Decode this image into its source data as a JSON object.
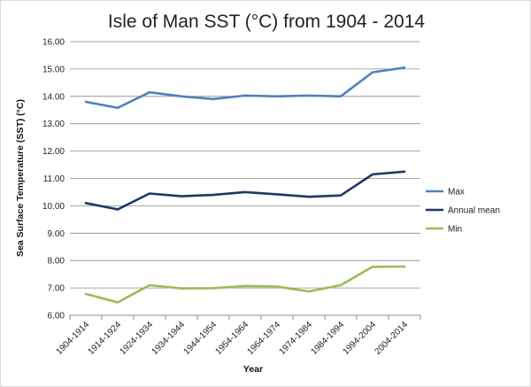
{
  "chart_data": {
    "type": "line",
    "title": "Isle of Man SST (°C) from 1904 - 2014",
    "xlabel": "Year",
    "ylabel": "Sea Surface Temperature (SST) (°C)",
    "ylim": [
      6,
      16
    ],
    "y_ticks": [
      "6.00",
      "7.00",
      "8.00",
      "9.00",
      "10.00",
      "11.00",
      "12.00",
      "13.00",
      "14.00",
      "15.00",
      "16.00"
    ],
    "grid": true,
    "legend_position": "right",
    "categories": [
      "1904-1914",
      "1914-1924",
      "1924-1934",
      "1934-1944",
      "1944-1954",
      "1954-1964",
      "1964-1974",
      "1974-1984",
      "1984-1994",
      "1994-2004",
      "2004-2014"
    ],
    "series": [
      {
        "name": "Max",
        "color": "#4f81bd",
        "values": [
          13.8,
          13.58,
          14.15,
          14.0,
          13.9,
          14.03,
          14.0,
          14.03,
          14.0,
          14.88,
          15.05
        ]
      },
      {
        "name": "Annual mean",
        "color": "#1f3864",
        "values": [
          10.1,
          9.87,
          10.45,
          10.35,
          10.4,
          10.5,
          10.42,
          10.33,
          10.38,
          11.15,
          11.25
        ]
      },
      {
        "name": "Min",
        "color": "#9bbb59",
        "values": [
          6.78,
          6.47,
          7.1,
          6.98,
          6.99,
          7.07,
          7.05,
          6.87,
          7.1,
          7.77,
          7.78
        ]
      }
    ]
  }
}
